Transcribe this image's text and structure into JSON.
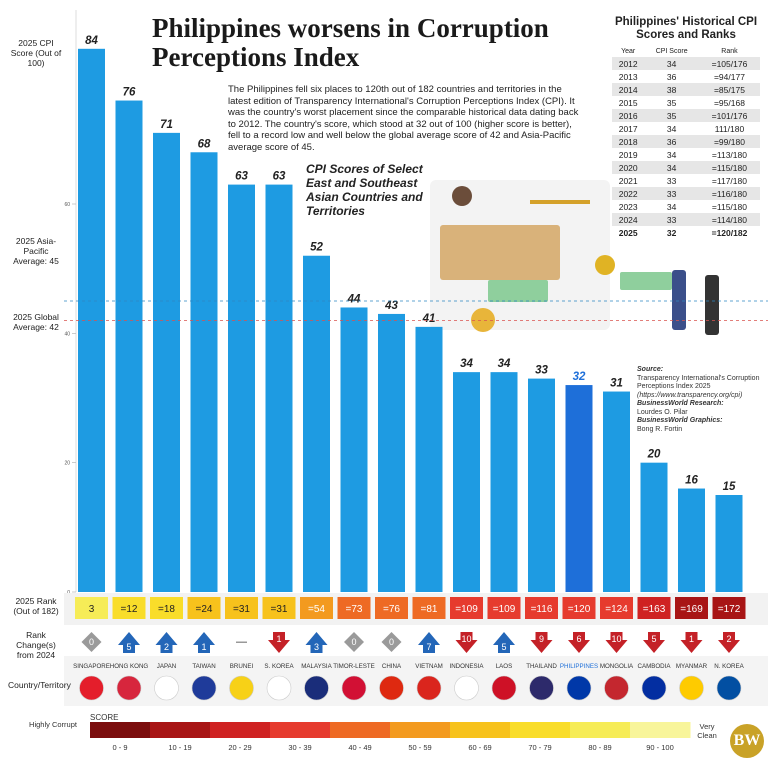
{
  "title": "Philippines worsens in Corruption Perceptions Index",
  "intro": "The Philippines fell six places to 120th out of 182 countries and territories in the latest edition of Transparency International's Corruption Perceptions Index (CPI). It was the country's worst placement since the comparable historical data dating back to 2012. The country's score, which stood at 32 out of 100 (higher score is better), fell to a record low and well below the global average score of 42 and Asia-Pacific average score of 45.",
  "labels": {
    "score_axis": "2025 CPI Score (Out of 100)",
    "asia_pacific_avg": "2025 Asia-Pacific Average: 45",
    "global_avg": "2025 Global Average: 42",
    "rank_row": "2025 Rank (Out of 182)",
    "change_row": "Rank Change(s) from 2024",
    "country_row": "Country/Territory"
  },
  "chart_data": {
    "type": "bar",
    "title": "CPI Scores of Select East and Southeast Asian Countries and Territories",
    "ylim": [
      0,
      90
    ],
    "y_ticks": [
      0,
      20,
      40,
      60
    ],
    "reference_lines": [
      {
        "name": "2025 Asia-Pacific Average",
        "value": 45,
        "color": "#2e86c1"
      },
      {
        "name": "2025 Global Average",
        "value": 42,
        "color": "#d9534f"
      }
    ],
    "categories": [
      "SINGAPORE",
      "HONG KONG",
      "JAPAN",
      "TAIWAN",
      "BRUNEI",
      "S. KOREA",
      "MALAYSIA",
      "TIMOR-LESTE",
      "CHINA",
      "VIETNAM",
      "INDONESIA",
      "LAOS",
      "THAILAND",
      "PHILIPPINES",
      "MONGOLIA",
      "CAMBODIA",
      "MYANMAR",
      "N. KOREA"
    ],
    "values": [
      84,
      76,
      71,
      68,
      63,
      63,
      52,
      44,
      43,
      41,
      34,
      34,
      33,
      32,
      31,
      20,
      16,
      15
    ],
    "ranks": [
      "3",
      "=12",
      "=18",
      "=24",
      "=31",
      "=31",
      "=54",
      "=73",
      "=76",
      "=81",
      "=109",
      "=109",
      "=116",
      "=120",
      "=124",
      "=163",
      "=169",
      "=172"
    ],
    "rank_changes": [
      {
        "dir": "same",
        "value": "0"
      },
      {
        "dir": "up",
        "value": "5"
      },
      {
        "dir": "up",
        "value": "2"
      },
      {
        "dir": "up",
        "value": "1"
      },
      {
        "dir": "none",
        "value": "—"
      },
      {
        "dir": "down",
        "value": "1"
      },
      {
        "dir": "up",
        "value": "3"
      },
      {
        "dir": "same",
        "value": "0"
      },
      {
        "dir": "same",
        "value": "0"
      },
      {
        "dir": "up",
        "value": "7"
      },
      {
        "dir": "down",
        "value": "10"
      },
      {
        "dir": "up",
        "value": "5"
      },
      {
        "dir": "down",
        "value": "9"
      },
      {
        "dir": "down",
        "value": "6"
      },
      {
        "dir": "down",
        "value": "10"
      },
      {
        "dir": "down",
        "value": "5"
      },
      {
        "dir": "down",
        "value": "1"
      },
      {
        "dir": "down",
        "value": "2"
      }
    ],
    "highlight": "PHILIPPINES",
    "bar_color": "#1e9be2",
    "highlight_color": "#1e6fd9"
  },
  "history": {
    "title": "Philippines' Historical CPI Scores and Ranks",
    "columns": [
      "Year",
      "CPI Score",
      "Rank"
    ],
    "rows": [
      [
        "2012",
        "34",
        "=105/176"
      ],
      [
        "2013",
        "36",
        "=94/177"
      ],
      [
        "2014",
        "38",
        "=85/175"
      ],
      [
        "2015",
        "35",
        "=95/168"
      ],
      [
        "2016",
        "35",
        "=101/176"
      ],
      [
        "2017",
        "34",
        "111/180"
      ],
      [
        "2018",
        "36",
        "=99/180"
      ],
      [
        "2019",
        "34",
        "=113/180"
      ],
      [
        "2020",
        "34",
        "=115/180"
      ],
      [
        "2021",
        "33",
        "=117/180"
      ],
      [
        "2022",
        "33",
        "=116/180"
      ],
      [
        "2023",
        "34",
        "=115/180"
      ],
      [
        "2024",
        "33",
        "=114/180"
      ],
      [
        "2025",
        "32",
        "=120/182"
      ]
    ]
  },
  "source": {
    "label": "Source:",
    "text": "Transparency International's Corruption Perceptions Index 2025",
    "url": "(https://www.transparency.org/cpi)",
    "research_label": "BusinessWorld Research:",
    "research": "Lourdes O. Pilar",
    "graphics_label": "BusinessWorld Graphics:",
    "graphics": "Bong R. Fortin"
  },
  "legend": {
    "title": "SCORE",
    "left": "Highly Corrupt",
    "right": "Very Clean",
    "ranges": [
      "0 - 9",
      "10 - 19",
      "20 - 29",
      "30 - 39",
      "40 - 49",
      "50 - 59",
      "60 - 69",
      "70 - 79",
      "80 - 89",
      "90 - 100"
    ],
    "colors": [
      "#7b0d0d",
      "#a81515",
      "#cf2222",
      "#e63b2e",
      "#ee6a24",
      "#f39a1f",
      "#f7c21c",
      "#f9dd2a",
      "#f6ec57",
      "#f8f59a"
    ]
  },
  "logo": "BW"
}
